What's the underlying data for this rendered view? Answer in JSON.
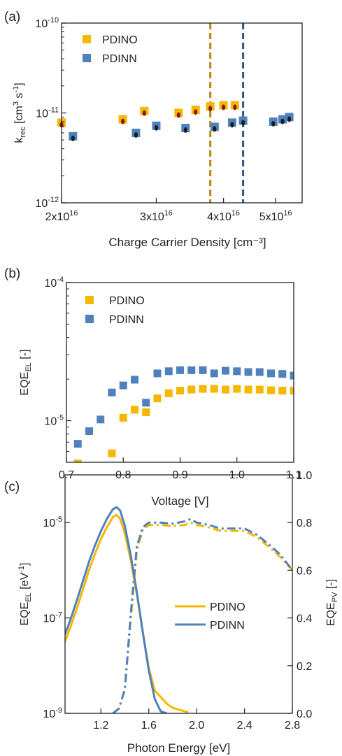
{
  "colors": {
    "pdino": "#f5b700",
    "pdinn": "#4f81bd",
    "dot_dark": "#1b1b1b",
    "dot_red": "#8b1a00",
    "vline_gold": "#b8860b",
    "vline_blue": "#2a5785",
    "axis": "#222222"
  },
  "chart_data": [
    {
      "panel_label": "(a)",
      "type": "scatter",
      "xlabel": "Charge Carrier Density [cm⁻³]",
      "ylabel": "k_rec [cm³ s⁻¹]",
      "ylabel_parts": {
        "main": "k",
        "sub": "rec",
        "unit": " [cm³ s⁻¹]"
      },
      "x_scale": "log",
      "y_scale": "log",
      "xlim": [
        2e+16,
        5.6e+16
      ],
      "ylim": [
        1e-12,
        1e-10
      ],
      "x_ticks": [
        {
          "value": 2e+16,
          "label": "2x10",
          "exp": "16"
        },
        {
          "value": 3e+16,
          "label": "3x10",
          "exp": "16"
        },
        {
          "value": 4e+16,
          "label": "4x10",
          "exp": "16"
        },
        {
          "value": 5e+16,
          "label": "5x10",
          "exp": "16"
        }
      ],
      "y_ticks": [
        {
          "value": 1e-12,
          "label": "10",
          "exp": "-12"
        },
        {
          "value": 1e-11,
          "label": "10",
          "exp": "-11"
        },
        {
          "value": 1e-10,
          "label": "10",
          "exp": "-10"
        }
      ],
      "legend": {
        "position": "top-left",
        "entries": [
          "PDINO",
          "PDINN"
        ]
      },
      "vertical_lines": [
        {
          "x": 3.78e+16,
          "series": "PDINO"
        },
        {
          "x": 4.35e+16,
          "series": "PDINN"
        }
      ],
      "series": [
        {
          "name": "PDINO",
          "x": [
            2e+16,
            2.6e+16,
            2.85e+16,
            3.3e+16,
            3.55e+16,
            3.78e+16,
            4e+16,
            4.2e+16
          ],
          "y": [
            7.8e-12,
            8.5e-12,
            1.05e-11,
            1e-11,
            1.08e-11,
            1.18e-11,
            1.22e-11,
            1.22e-11
          ]
        },
        {
          "name": "PDINN",
          "x": [
            2.1e+16,
            2.75e+16,
            3e+16,
            3.4e+16,
            3.85e+16,
            4.15e+16,
            4.35e+16,
            4.95e+16,
            5.15e+16,
            5.3e+16
          ],
          "y": [
            5.5e-12,
            6e-12,
            7.2e-12,
            6.8e-12,
            7e-12,
            7.8e-12,
            8.2e-12,
            8e-12,
            8.5e-12,
            9e-12
          ]
        }
      ]
    },
    {
      "panel_label": "(b)",
      "type": "scatter",
      "xlabel": "Voltage [V]",
      "ylabel": "EQE_EL [-]",
      "ylabel_parts": {
        "main": "EQE",
        "sub": "EL",
        "unit": " [-]"
      },
      "x_scale": "linear",
      "y_scale": "log",
      "xlim": [
        0.7,
        1.1
      ],
      "ylim": [
        5e-06,
        0.0001
      ],
      "x_ticks": [
        {
          "value": 0.7,
          "label": "0.7"
        },
        {
          "value": 0.8,
          "label": "0.8"
        },
        {
          "value": 0.9,
          "label": "0.9"
        },
        {
          "value": 1.0,
          "label": "1.0"
        },
        {
          "value": 1.1,
          "label": "1.1"
        }
      ],
      "y_ticks": [
        {
          "value": 1e-05,
          "label": "10",
          "exp": "-5"
        },
        {
          "value": 0.0001,
          "label": "10",
          "exp": "-4"
        }
      ],
      "legend": {
        "position": "top-left",
        "entries": [
          "PDINO",
          "PDINN"
        ]
      },
      "series": [
        {
          "name": "PDINO",
          "x": [
            0.72,
            0.78,
            0.8,
            0.82,
            0.84,
            0.86,
            0.88,
            0.9,
            0.92,
            0.94,
            0.96,
            0.98,
            1.0,
            1.02,
            1.04,
            1.06,
            1.08,
            1.1
          ],
          "y": [
            4.9e-06,
            5.8e-06,
            1.05e-05,
            1.2e-05,
            1.15e-05,
            1.45e-05,
            1.58e-05,
            1.65e-05,
            1.68e-05,
            1.7e-05,
            1.7e-05,
            1.68e-05,
            1.7e-05,
            1.68e-05,
            1.68e-05,
            1.66e-05,
            1.65e-05,
            1.65e-05
          ]
        },
        {
          "name": "PDINN",
          "x": [
            0.72,
            0.74,
            0.76,
            0.78,
            0.8,
            0.82,
            0.84,
            0.86,
            0.88,
            0.9,
            0.92,
            0.94,
            0.96,
            0.98,
            1.0,
            1.02,
            1.04,
            1.06,
            1.08,
            1.1
          ],
          "y": [
            6.8e-06,
            8.4e-06,
            1.02e-05,
            1.6e-05,
            1.8e-05,
            1.98e-05,
            1.35e-05,
            2.2e-05,
            2.28e-05,
            2.32e-05,
            2.32e-05,
            2.32e-05,
            2.2e-05,
            2.3e-05,
            2.28e-05,
            2.25e-05,
            2.25e-05,
            2.2e-05,
            2.18e-05,
            2.12e-05
          ]
        }
      ]
    },
    {
      "panel_label": "(c)",
      "type": "line",
      "xlabel": "Photon Energy [eV]",
      "ylabel": "EQE_EL [eV⁻¹]",
      "ylabel_parts": {
        "main": "EQE",
        "sub": "EL",
        "unit": " [eV",
        "unit_exp": "-1",
        "unit_end": "]"
      },
      "y2label": "EQE_PV [-]",
      "y2label_parts": {
        "main": "EQE",
        "sub": "PV",
        "unit": " [-]"
      },
      "x_scale": "linear",
      "y_scale": "log",
      "y2_scale": "linear",
      "xlim": [
        0.9,
        2.8
      ],
      "ylim": [
        1e-09,
        0.0001
      ],
      "y2lim": [
        0.0,
        1.0
      ],
      "x_ticks": [
        {
          "value": 1.2,
          "label": "1.2"
        },
        {
          "value": 1.6,
          "label": "1.6"
        },
        {
          "value": 2.0,
          "label": "2.0"
        },
        {
          "value": 2.4,
          "label": "2.4"
        },
        {
          "value": 2.8,
          "label": "2.8"
        }
      ],
      "y_ticks": [
        {
          "value": 1e-09,
          "label": "10",
          "exp": "-9"
        },
        {
          "value": 1e-07,
          "label": "10",
          "exp": "-7"
        },
        {
          "value": 1e-05,
          "label": "10",
          "exp": "-5"
        }
      ],
      "y2_ticks": [
        {
          "value": 0.0,
          "label": "0.0"
        },
        {
          "value": 0.2,
          "label": "0.2"
        },
        {
          "value": 0.4,
          "label": "0.4"
        },
        {
          "value": 0.6,
          "label": "0.6"
        },
        {
          "value": 0.8,
          "label": "0.8"
        },
        {
          "value": 1.0,
          "label": "1.0"
        }
      ],
      "legend": {
        "position": "center-right",
        "entries": [
          "PDINO",
          "PDINN"
        ]
      },
      "series": [
        {
          "name": "PDINO",
          "kind": "EQE_EL",
          "axis": "left",
          "style": "solid",
          "x": [
            0.9,
            0.95,
            1.0,
            1.05,
            1.1,
            1.15,
            1.2,
            1.25,
            1.3,
            1.33,
            1.36,
            1.4,
            1.45,
            1.5,
            1.55,
            1.6,
            1.65,
            1.7,
            1.75,
            1.8,
            1.85,
            1.9,
            1.93
          ],
          "y": [
            3.2e-08,
            7e-08,
            1.6e-07,
            4e-07,
            1e-06,
            2.2e-06,
            4.5e-06,
            8e-06,
            1.3e-05,
            1.45e-05,
            1.2e-05,
            6e-06,
            1.6e-06,
            3.2e-07,
            5e-08,
            9e-09,
            3e-09,
            2.2e-09,
            1.6e-09,
            1.3e-09,
            1.2e-09,
            1.1e-09,
            1.05e-09
          ]
        },
        {
          "name": "PDINN",
          "kind": "EQE_EL",
          "axis": "left",
          "style": "solid",
          "x": [
            0.9,
            0.95,
            1.0,
            1.05,
            1.1,
            1.15,
            1.2,
            1.25,
            1.3,
            1.33,
            1.36,
            1.4,
            1.45,
            1.5,
            1.55,
            1.6,
            1.65,
            1.7,
            1.75
          ],
          "y": [
            4.5e-08,
            1e-07,
            2.4e-07,
            6e-07,
            1.5e-06,
            3.3e-06,
            6.6e-06,
            1.2e-05,
            1.9e-05,
            2.1e-05,
            1.8e-05,
            8.5e-06,
            2e-06,
            3.5e-07,
            5e-08,
            8e-09,
            2e-09,
            1.1e-09,
            1e-09
          ]
        },
        {
          "name": "PDINO",
          "kind": "EQE_PV",
          "axis": "right",
          "style": "dashdot",
          "x": [
            1.3,
            1.35,
            1.4,
            1.45,
            1.5,
            1.55,
            1.6,
            1.65,
            1.7,
            1.8,
            1.9,
            1.95,
            2.0,
            2.1,
            2.2,
            2.3,
            2.4,
            2.5,
            2.6,
            2.7,
            2.8
          ],
          "y": [
            0.0,
            0.02,
            0.1,
            0.4,
            0.68,
            0.77,
            0.79,
            0.79,
            0.79,
            0.785,
            0.79,
            0.8,
            0.79,
            0.78,
            0.765,
            0.765,
            0.765,
            0.74,
            0.7,
            0.655,
            0.6
          ]
        },
        {
          "name": "PDINN",
          "kind": "EQE_PV",
          "axis": "right",
          "style": "dashdot",
          "x": [
            1.3,
            1.35,
            1.4,
            1.45,
            1.5,
            1.55,
            1.6,
            1.65,
            1.7,
            1.8,
            1.9,
            1.95,
            2.0,
            2.1,
            2.2,
            2.3,
            2.4,
            2.5,
            2.6,
            2.7,
            2.8
          ],
          "y": [
            0.0,
            0.02,
            0.1,
            0.42,
            0.7,
            0.78,
            0.8,
            0.8,
            0.8,
            0.795,
            0.805,
            0.815,
            0.8,
            0.79,
            0.775,
            0.775,
            0.775,
            0.75,
            0.71,
            0.665,
            0.6
          ]
        }
      ]
    }
  ]
}
